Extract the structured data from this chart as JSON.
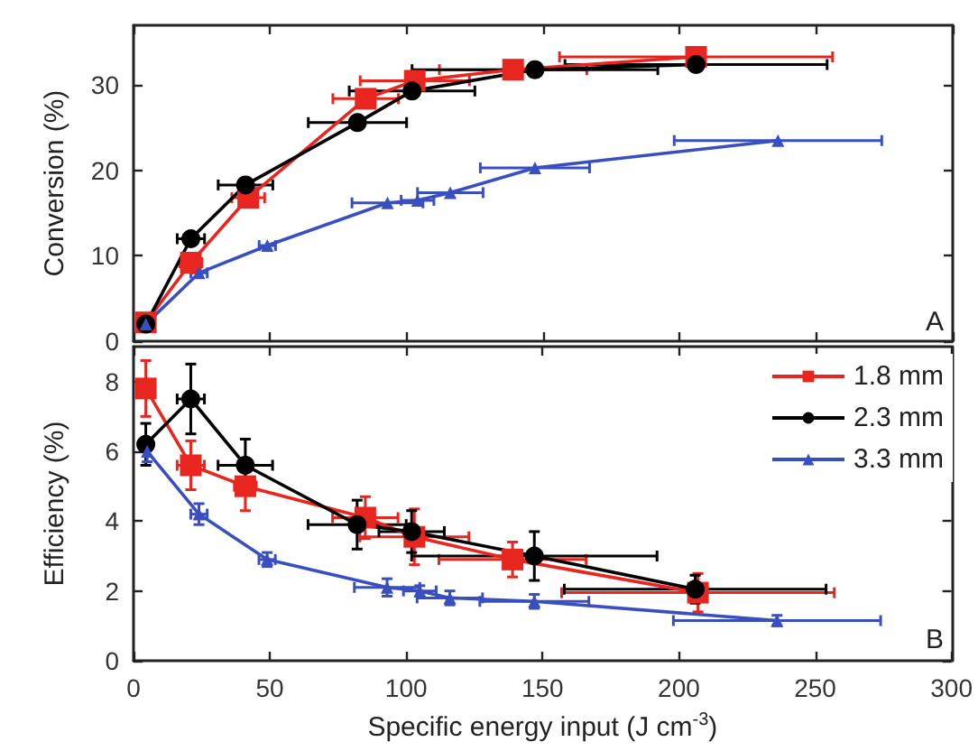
{
  "chart_data": [
    {
      "type": "line",
      "ylabel": "Conversion (%)",
      "annotations": [
        "A"
      ],
      "xlim": [
        0,
        300
      ],
      "xticks": [
        0,
        50,
        100,
        150,
        200,
        250,
        300
      ],
      "ylim": [
        0,
        37
      ],
      "yticks": [
        0,
        10,
        20,
        30
      ],
      "tick_labels": "y",
      "grid": false,
      "legend": false,
      "series": [
        {
          "color": "#e8261f",
          "marker": "square",
          "x": [
            4.5,
            21,
            42,
            85,
            103,
            139,
            206
          ],
          "values": [
            2.2,
            9.2,
            16.8,
            28.4,
            30.5,
            31.8,
            33.3
          ],
          "xerrors": [
            null,
            4,
            6,
            12,
            20,
            27,
            50
          ]
        },
        {
          "color": "#000000",
          "marker": "circle",
          "x": [
            4.5,
            21,
            41,
            82,
            102,
            147,
            206
          ],
          "values": [
            2.0,
            12.0,
            18.3,
            25.6,
            29.3,
            31.8,
            32.4
          ],
          "xerrors": [
            null,
            5,
            10,
            18,
            23,
            45,
            48
          ]
        },
        {
          "color": "#3a4fbf",
          "marker": "triangle",
          "x": [
            4.5,
            24,
            49,
            93,
            104,
            116,
            147,
            236
          ],
          "values": [
            2.0,
            8.0,
            11.2,
            16.2,
            16.5,
            17.4,
            20.3,
            23.5
          ],
          "xerrors": [
            null,
            3,
            3,
            13,
            6,
            12,
            20,
            38
          ]
        }
      ]
    },
    {
      "type": "line",
      "xlabel": "Specific energy input (J cm$^{-3}$)",
      "ylabel": "Efficiency (%)",
      "annotations": [
        "B"
      ],
      "xlim": [
        0,
        300
      ],
      "xticks": [
        0,
        50,
        100,
        150,
        200,
        250,
        300
      ],
      "ylim": [
        0,
        9
      ],
      "yticks": [
        0,
        2,
        4,
        6,
        8
      ],
      "grid": false,
      "legend": "top right",
      "series": [
        {
          "name": "1.8 mm",
          "color": "#e8261f",
          "marker": "square",
          "x": [
            4.5,
            21,
            41,
            85,
            103,
            139,
            207
          ],
          "values": [
            7.8,
            5.6,
            5.0,
            4.1,
            3.55,
            2.9,
            1.95
          ],
          "errors": [
            0.8,
            0.7,
            0.7,
            0.6,
            0.8,
            0.5,
            0.55
          ],
          "xerrors": [
            null,
            5,
            4,
            12,
            20,
            27,
            50
          ]
        },
        {
          "name": "2.3 mm",
          "color": "#000000",
          "marker": "circle",
          "x": [
            4.5,
            21,
            41,
            82,
            102,
            147,
            206
          ],
          "values": [
            6.2,
            7.5,
            5.6,
            3.9,
            3.7,
            3.0,
            2.05
          ],
          "errors": [
            0.6,
            1.0,
            0.75,
            0.7,
            0.6,
            0.7,
            0.4
          ],
          "xerrors": [
            null,
            5,
            10,
            18,
            12,
            45,
            48
          ]
        },
        {
          "name": "3.3 mm",
          "color": "#3a4fbf",
          "marker": "triangle",
          "x": [
            5,
            24,
            49,
            93,
            105,
            116,
            147,
            236
          ],
          "values": [
            6.0,
            4.2,
            2.9,
            2.1,
            2.0,
            1.8,
            1.7,
            1.15
          ],
          "errors": [
            0.3,
            0.3,
            0.2,
            0.25,
            0.15,
            0.2,
            0.2,
            0.15
          ],
          "xerrors": [
            null,
            3,
            3,
            12,
            6,
            12,
            20,
            38
          ]
        }
      ]
    }
  ]
}
